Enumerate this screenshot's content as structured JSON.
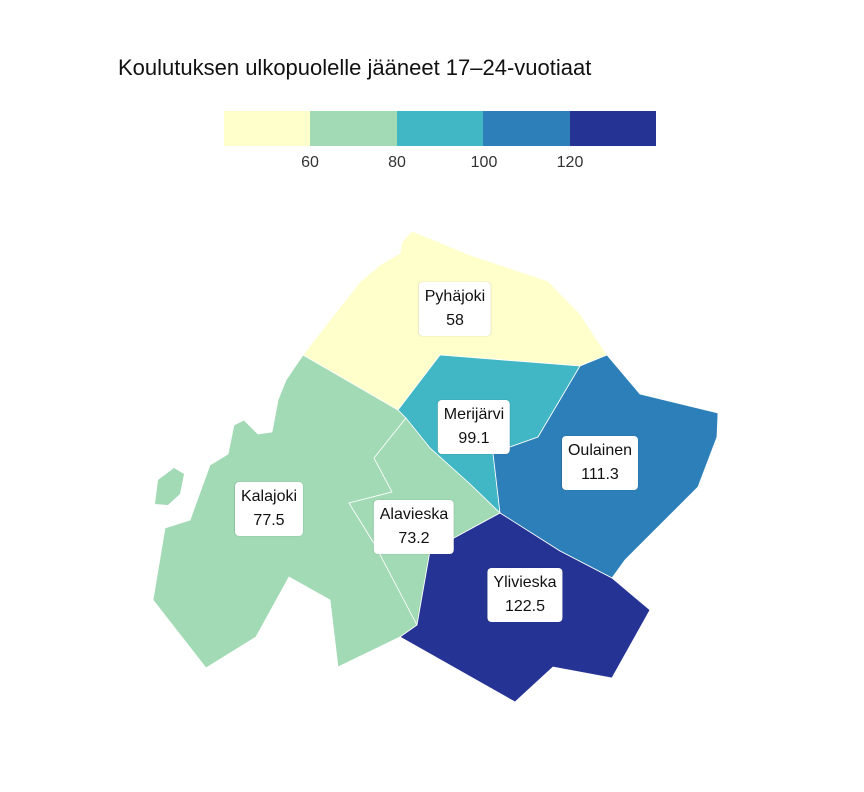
{
  "title": "Koulutuksen ulkopuolelle jääneet 17–24-vuotiaat",
  "legend": {
    "colors": [
      "#ffffcc",
      "#a1dab4",
      "#41b6c4",
      "#2c7fb8",
      "#253494"
    ],
    "ticks": [
      "60",
      "80",
      "100",
      "120"
    ]
  },
  "regions": [
    {
      "name": "Pyhäjoki",
      "value": "58",
      "color": "#ffffcc"
    },
    {
      "name": "Merijärvi",
      "value": "99.1",
      "color": "#41b6c4"
    },
    {
      "name": "Oulainen",
      "value": "111.3",
      "color": "#2c7fb8"
    },
    {
      "name": "Kalajoki",
      "value": "77.5",
      "color": "#a1dab4"
    },
    {
      "name": "Alavieska",
      "value": "73.2",
      "color": "#a1dab4"
    },
    {
      "name": "Ylivieska",
      "value": "122.5",
      "color": "#253494"
    }
  ]
}
